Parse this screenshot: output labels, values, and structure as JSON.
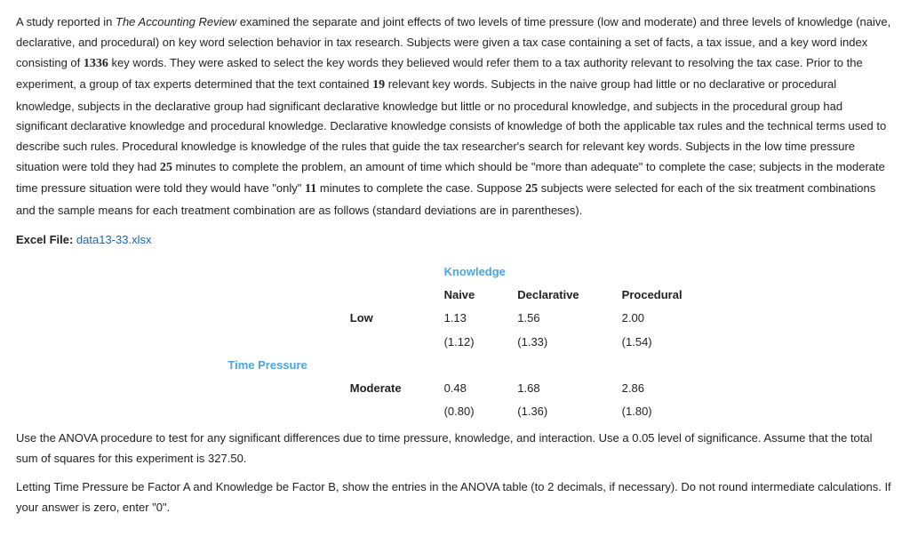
{
  "intro": {
    "pre_italic": "A study reported in ",
    "italic": "The Accounting Review",
    "after_italic": " examined the separate and joint effects of two levels of time pressure (low and moderate) and three levels of knowledge (naive, declarative, and procedural) on key word selection behavior in tax research. Subjects were given a tax case containing a set of facts, a tax issue, and a key word index consisting of ",
    "num1": "1336",
    "after_num1": " key words. They were asked to select the key words they believed would refer them to a tax authority relevant to resolving the tax case. Prior to the experiment, a group of tax experts determined that the text contained ",
    "num2": "19",
    "after_num2": " relevant key words. Subjects in the naive group had little or no declarative or procedural knowledge, subjects in the declarative group had significant declarative knowledge but little or no procedural knowledge, and subjects in the procedural group had significant declarative knowledge and procedural knowledge. Declarative knowledge consists of knowledge of both the applicable tax rules and the technical terms used to describe such rules. Procedural knowledge is knowledge of the rules that guide the tax researcher's search for relevant key words. Subjects in the low time pressure situation were told they had ",
    "num3": "25",
    "after_num3": " minutes to complete the problem, an amount of time which should be \"more than adequate\" to complete the case; subjects in the moderate time pressure situation were told they would have \"only\" ",
    "num4": "11",
    "after_num4": " minutes to complete the case. Suppose ",
    "num5": "25",
    "after_num5": " subjects were selected for each of the six treatment combinations and the sample means for each treatment combination are as follows (standard deviations are in parentheses)."
  },
  "file": {
    "label": "Excel File: ",
    "name": "data13-33.xlsx"
  },
  "table": {
    "knowledge_hdr": "Knowledge",
    "time_pressure_hdr": "Time Pressure",
    "cols": {
      "naive": "Naive",
      "decl": "Declarative",
      "proc": "Procedural"
    },
    "rows": {
      "low": {
        "label": "Low",
        "naive_mean": "1.13",
        "naive_sd": "(1.12)",
        "decl_mean": "1.56",
        "decl_sd": "(1.33)",
        "proc_mean": "2.00",
        "proc_sd": "(1.54)"
      },
      "mod": {
        "label": "Moderate",
        "naive_mean": "0.48",
        "naive_sd": "(0.80)",
        "decl_mean": "1.68",
        "decl_sd": "(1.36)",
        "proc_mean": "2.86",
        "proc_sd": "(1.80)"
      }
    }
  },
  "q1": {
    "pre": "Use the ANOVA procedure to test for any significant differences due to time pressure, knowledge, and interaction. Use a ",
    "alpha": "0.05",
    "mid": " level of significance. Assume that the total sum of squares for this experiment is ",
    "sst": "327.50."
  },
  "q2": {
    "pre": "Letting Time Pressure be Factor A and Knowledge be Factor B, show the entries in the ANOVA table (to ",
    "dec": "2",
    "post": " decimals, if necessary). Do not round intermediate calculations. If your answer is zero, enter \"0\"."
  }
}
